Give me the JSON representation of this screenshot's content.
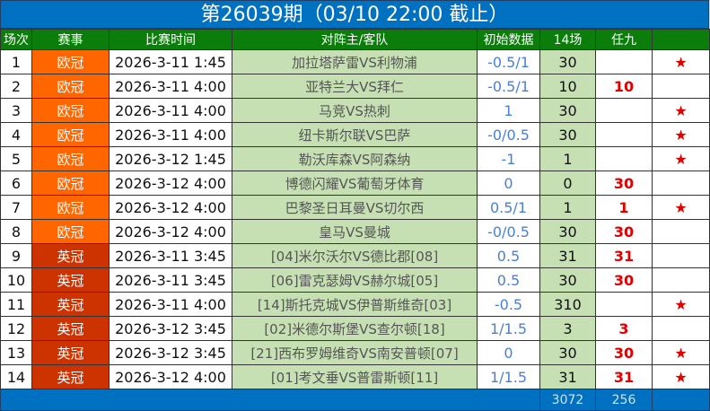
{
  "title": "第26039期（03/10 22:00 截止）",
  "headers": [
    "场次",
    "赛事",
    "比赛时间",
    "对阵主/客队",
    "初始数据",
    "14场",
    "任九",
    ""
  ],
  "league_colors": {
    "欧冠": "#ff6600",
    "英冠": "#cc3300"
  },
  "rows": [
    {
      "no": "1",
      "league": "欧冠",
      "time": "2026-3-11 1:45",
      "teams": "加拉塔萨雷VS利物浦",
      "odds": "-0.5/1",
      "c14": "30",
      "r9": "",
      "star": true
    },
    {
      "no": "2",
      "league": "欧冠",
      "time": "2026-3-11 4:00",
      "teams": "亚特兰大VS拜仁",
      "odds": "-0.5/1",
      "c14": "10",
      "r9": "10",
      "star": false
    },
    {
      "no": "3",
      "league": "欧冠",
      "time": "2026-3-11 4:00",
      "teams": "马竞VS热刺",
      "odds": "1",
      "c14": "30",
      "r9": "",
      "star": true
    },
    {
      "no": "4",
      "league": "欧冠",
      "time": "2026-3-11 4:00",
      "teams": "纽卡斯尔联VS巴萨",
      "odds": "-0/0.5",
      "c14": "30",
      "r9": "",
      "star": true
    },
    {
      "no": "5",
      "league": "欧冠",
      "time": "2026-3-12 1:45",
      "teams": "勒沃库森VS阿森纳",
      "odds": "-1",
      "c14": "1",
      "r9": "",
      "star": true
    },
    {
      "no": "6",
      "league": "欧冠",
      "time": "2026-3-12 4:00",
      "teams": "博德闪耀VS葡萄牙体育",
      "odds": "0",
      "c14": "0",
      "r9": "30",
      "star": false
    },
    {
      "no": "7",
      "league": "欧冠",
      "time": "2026-3-12 4:00",
      "teams": "巴黎圣日耳曼VS切尔西",
      "odds": "0.5/1",
      "c14": "1",
      "r9": "1",
      "star": true
    },
    {
      "no": "8",
      "league": "欧冠",
      "time": "2026-3-12 4:00",
      "teams": "皇马VS曼城",
      "odds": "-0/0.5",
      "c14": "30",
      "r9": "30",
      "star": false
    },
    {
      "no": "9",
      "league": "英冠",
      "time": "2026-3-11 3:45",
      "teams": "[04]米尔沃尔VS德比郡[08]",
      "odds": "0.5",
      "c14": "31",
      "r9": "31",
      "star": false
    },
    {
      "no": "10",
      "league": "英冠",
      "time": "2026-3-11 3:45",
      "teams": "[06]雷克瑟姆VS赫尔城[05]",
      "odds": "0.5",
      "c14": "30",
      "r9": "30",
      "star": false
    },
    {
      "no": "11",
      "league": "英冠",
      "time": "2026-3-11 4:00",
      "teams": "[14]斯托克城VS伊普斯维奇[03]",
      "odds": "-0.5",
      "c14": "310",
      "r9": "",
      "star": true
    },
    {
      "no": "12",
      "league": "英冠",
      "time": "2026-3-12 3:45",
      "teams": "[02]米德尔斯堡VS查尔顿[18]",
      "odds": "1/1.5",
      "c14": "3",
      "r9": "3",
      "star": false
    },
    {
      "no": "13",
      "league": "英冠",
      "time": "2026-3-12 3:45",
      "teams": "[21]西布罗姆维奇VS南安普顿[07]",
      "odds": "0",
      "c14": "30",
      "r9": "30",
      "star": true
    },
    {
      "no": "14",
      "league": "英冠",
      "time": "2026-3-12 4:00",
      "teams": "[01]考文垂VS普雷斯顿[11]",
      "odds": "1/1.5",
      "c14": "31",
      "r9": "31",
      "star": true
    }
  ],
  "star_glyph": "★",
  "footer": {
    "total14": "3072",
    "totalR9": "256"
  }
}
